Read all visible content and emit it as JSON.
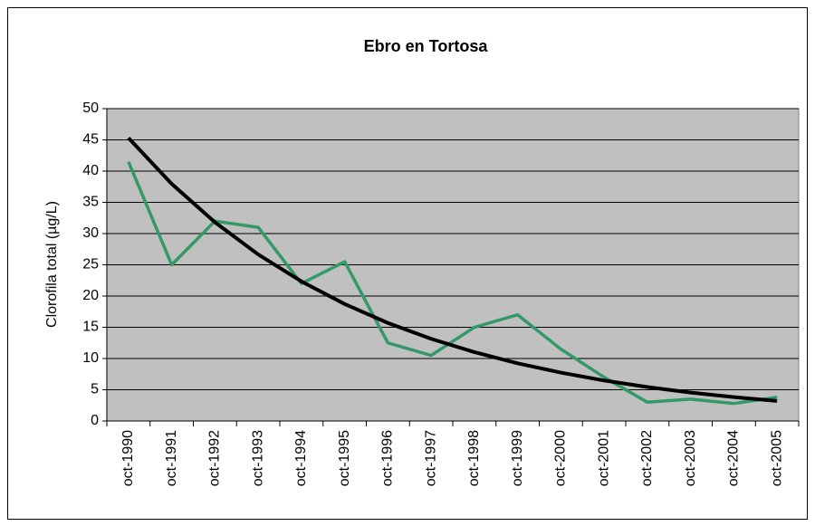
{
  "chart_data": {
    "type": "line",
    "title": "Ebro en Tortosa",
    "y_label": "Clorofila total (µg/L)",
    "categories": [
      "oct-1990",
      "oct-1991",
      "oct-1992",
      "oct-1993",
      "oct-1994",
      "oct-1995",
      "oct-1996",
      "oct-1997",
      "oct-1998",
      "oct-1999",
      "oct-2000",
      "oct-2001",
      "oct-2002",
      "oct-2003",
      "oct-2004",
      "oct-2005"
    ],
    "series": [
      {
        "color": "#339966",
        "values": [
          41.5,
          25,
          32,
          31,
          22,
          25.5,
          12.5,
          10.5,
          15,
          17,
          11.5,
          7,
          3,
          3.5,
          2.8,
          3.8
        ]
      },
      {
        "color": "#000000",
        "values": [
          45.3,
          37.96,
          31.81,
          26.66,
          22.34,
          18.72,
          15.69,
          13.15,
          11.02,
          9.23,
          7.74,
          6.48,
          5.43,
          4.55,
          3.82,
          3.2
        ]
      }
    ],
    "ylim": [
      0,
      50
    ],
    "yticks": [
      0,
      5,
      10,
      15,
      20,
      25,
      30,
      35,
      40,
      45,
      50
    ],
    "grid": true,
    "plot_background": "#c0c0c0"
  }
}
